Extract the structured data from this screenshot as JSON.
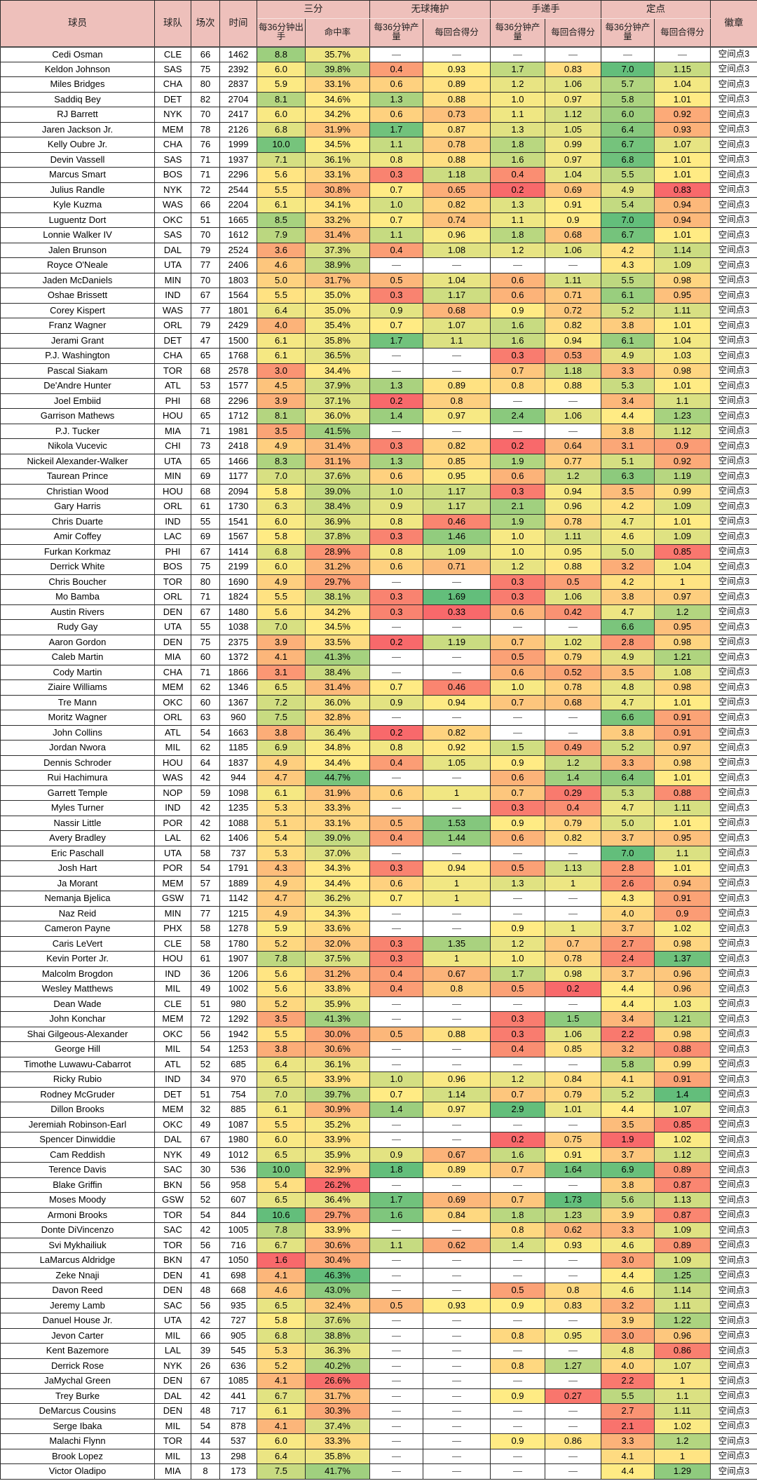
{
  "header": {
    "player": "球员",
    "team": "球队",
    "games": "场次",
    "minutes": "时间",
    "badge": "徽章",
    "groups": [
      {
        "label": "三分",
        "sub1": "每36分钟出手",
        "sub2": "命中率"
      },
      {
        "label": "无球掩护",
        "sub1": "每36分钟产量",
        "sub2": "每回合得分"
      },
      {
        "label": "手递手",
        "sub1": "每36分钟产量",
        "sub2": "每回合得分"
      },
      {
        "label": "定点",
        "sub1": "每36分钟产量",
        "sub2": "每回合得分"
      }
    ]
  },
  "heatmap": {
    "min_color": "#F8696B",
    "mid_color": "#FFEB84",
    "max_color": "#63BE7B",
    "empty_text": "—"
  },
  "rows": [
    [
      "Cedi Osman",
      "CLE",
      "66",
      "1462",
      "8.8",
      "35.7%",
      "—",
      "—",
      "—",
      "—",
      "—",
      "—",
      "空间点3"
    ],
    [
      "Keldon Johnson",
      "SAS",
      "75",
      "2392",
      "6.0",
      "39.8%",
      "0.4",
      "0.93",
      "1.7",
      "0.83",
      "7.0",
      "1.15",
      "空间点3"
    ],
    [
      "Miles Bridges",
      "CHA",
      "80",
      "2837",
      "5.9",
      "33.1%",
      "0.6",
      "0.89",
      "1.2",
      "1.06",
      "5.7",
      "1.04",
      "空间点3"
    ],
    [
      "Saddiq Bey",
      "DET",
      "82",
      "2704",
      "8.1",
      "34.6%",
      "1.3",
      "0.88",
      "1.0",
      "0.97",
      "5.8",
      "1.01",
      "空间点3"
    ],
    [
      "RJ Barrett",
      "NYK",
      "70",
      "2417",
      "6.0",
      "34.2%",
      "0.6",
      "0.73",
      "1.1",
      "1.12",
      "6.0",
      "0.92",
      "空间点3"
    ],
    [
      "Jaren Jackson Jr.",
      "MEM",
      "78",
      "2126",
      "6.8",
      "31.9%",
      "1.7",
      "0.87",
      "1.3",
      "1.05",
      "6.4",
      "0.93",
      "空间点3"
    ],
    [
      "Kelly Oubre Jr.",
      "CHA",
      "76",
      "1999",
      "10.0",
      "34.5%",
      "1.1",
      "0.78",
      "1.8",
      "0.99",
      "6.7",
      "1.07",
      "空间点3"
    ],
    [
      "Devin Vassell",
      "SAS",
      "71",
      "1937",
      "7.1",
      "36.1%",
      "0.8",
      "0.88",
      "1.6",
      "0.97",
      "6.8",
      "1.01",
      "空间点3"
    ],
    [
      "Marcus Smart",
      "BOS",
      "71",
      "2296",
      "5.6",
      "33.1%",
      "0.3",
      "1.18",
      "0.4",
      "1.04",
      "5.5",
      "1.01",
      "空间点3"
    ],
    [
      "Julius Randle",
      "NYK",
      "72",
      "2544",
      "5.5",
      "30.8%",
      "0.7",
      "0.65",
      "0.2",
      "0.69",
      "4.9",
      "0.83",
      "空间点3"
    ],
    [
      "Kyle Kuzma",
      "WAS",
      "66",
      "2204",
      "6.1",
      "34.1%",
      "1.0",
      "0.82",
      "1.3",
      "0.91",
      "5.4",
      "0.94",
      "空间点3"
    ],
    [
      "Luguentz Dort",
      "OKC",
      "51",
      "1665",
      "8.5",
      "33.2%",
      "0.7",
      "0.74",
      "1.1",
      "0.9",
      "7.0",
      "0.94",
      "空间点3"
    ],
    [
      "Lonnie Walker IV",
      "SAS",
      "70",
      "1612",
      "7.9",
      "31.4%",
      "1.1",
      "0.96",
      "1.8",
      "0.68",
      "6.7",
      "1.01",
      "空间点3"
    ],
    [
      "Jalen Brunson",
      "DAL",
      "79",
      "2524",
      "3.6",
      "37.3%",
      "0.4",
      "1.08",
      "1.2",
      "1.06",
      "4.2",
      "1.14",
      "空间点3"
    ],
    [
      "Royce O'Neale",
      "UTA",
      "77",
      "2406",
      "4.6",
      "38.9%",
      "—",
      "—",
      "—",
      "—",
      "4.3",
      "1.09",
      "空间点3"
    ],
    [
      "Jaden McDaniels",
      "MIN",
      "70",
      "1803",
      "5.0",
      "31.7%",
      "0.5",
      "1.04",
      "0.6",
      "1.11",
      "5.5",
      "0.98",
      "空间点3"
    ],
    [
      "Oshae Brissett",
      "IND",
      "67",
      "1564",
      "5.5",
      "35.0%",
      "0.3",
      "1.17",
      "0.6",
      "0.71",
      "6.1",
      "0.95",
      "空间点3"
    ],
    [
      "Corey Kispert",
      "WAS",
      "77",
      "1801",
      "6.4",
      "35.0%",
      "0.9",
      "0.68",
      "0.9",
      "0.72",
      "5.2",
      "1.11",
      "空间点3"
    ],
    [
      "Franz Wagner",
      "ORL",
      "79",
      "2429",
      "4.0",
      "35.4%",
      "0.7",
      "1.07",
      "1.6",
      "0.82",
      "3.8",
      "1.01",
      "空间点3"
    ],
    [
      "Jerami Grant",
      "DET",
      "47",
      "1500",
      "6.1",
      "35.8%",
      "1.7",
      "1.1",
      "1.6",
      "0.94",
      "6.1",
      "1.04",
      "空间点3"
    ],
    [
      "P.J. Washington",
      "CHA",
      "65",
      "1768",
      "6.1",
      "36.5%",
      "—",
      "—",
      "0.3",
      "0.53",
      "4.9",
      "1.03",
      "空间点3"
    ],
    [
      "Pascal Siakam",
      "TOR",
      "68",
      "2578",
      "3.0",
      "34.4%",
      "—",
      "—",
      "0.7",
      "1.18",
      "3.3",
      "0.98",
      "空间点3"
    ],
    [
      "De'Andre Hunter",
      "ATL",
      "53",
      "1577",
      "4.5",
      "37.9%",
      "1.3",
      "0.89",
      "0.8",
      "0.88",
      "5.3",
      "1.01",
      "空间点3"
    ],
    [
      "Joel Embiid",
      "PHI",
      "68",
      "2296",
      "3.9",
      "37.1%",
      "0.2",
      "0.8",
      "—",
      "—",
      "3.4",
      "1.1",
      "空间点3"
    ],
    [
      "Garrison Mathews",
      "HOU",
      "65",
      "1712",
      "8.1",
      "36.0%",
      "1.4",
      "0.97",
      "2.4",
      "1.06",
      "4.4",
      "1.23",
      "空间点3"
    ],
    [
      "P.J. Tucker",
      "MIA",
      "71",
      "1981",
      "3.5",
      "41.5%",
      "—",
      "—",
      "—",
      "—",
      "3.8",
      "1.12",
      "空间点3"
    ],
    [
      "Nikola Vucevic",
      "CHI",
      "73",
      "2418",
      "4.9",
      "31.4%",
      "0.3",
      "0.82",
      "0.2",
      "0.64",
      "3.1",
      "0.9",
      "空间点3"
    ],
    [
      "Nickeil Alexander-Walker",
      "UTA",
      "65",
      "1466",
      "8.3",
      "31.1%",
      "1.3",
      "0.85",
      "1.9",
      "0.77",
      "5.1",
      "0.92",
      "空间点3"
    ],
    [
      "Taurean Prince",
      "MIN",
      "69",
      "1177",
      "7.0",
      "37.6%",
      "0.6",
      "0.95",
      "0.6",
      "1.2",
      "6.3",
      "1.19",
      "空间点3"
    ],
    [
      "Christian Wood",
      "HOU",
      "68",
      "2094",
      "5.8",
      "39.0%",
      "1.0",
      "1.17",
      "0.3",
      "0.94",
      "3.5",
      "0.99",
      "空间点3"
    ],
    [
      "Gary Harris",
      "ORL",
      "61",
      "1730",
      "6.3",
      "38.4%",
      "0.9",
      "1.17",
      "2.1",
      "0.96",
      "4.2",
      "1.09",
      "空间点3"
    ],
    [
      "Chris Duarte",
      "IND",
      "55",
      "1541",
      "6.0",
      "36.9%",
      "0.8",
      "0.46",
      "1.9",
      "0.78",
      "4.7",
      "1.01",
      "空间点3"
    ],
    [
      "Amir Coffey",
      "LAC",
      "69",
      "1567",
      "5.8",
      "37.8%",
      "0.3",
      "1.46",
      "1.0",
      "1.11",
      "4.6",
      "1.09",
      "空间点3"
    ],
    [
      "Furkan Korkmaz",
      "PHI",
      "67",
      "1414",
      "6.8",
      "28.9%",
      "0.8",
      "1.09",
      "1.0",
      "0.95",
      "5.0",
      "0.85",
      "空间点3"
    ],
    [
      "Derrick White",
      "BOS",
      "75",
      "2199",
      "6.0",
      "31.2%",
      "0.6",
      "0.71",
      "1.2",
      "0.88",
      "3.2",
      "1.04",
      "空间点3"
    ],
    [
      "Chris Boucher",
      "TOR",
      "80",
      "1690",
      "4.9",
      "29.7%",
      "—",
      "—",
      "0.3",
      "0.5",
      "4.2",
      "1",
      "空间点3"
    ],
    [
      "Mo Bamba",
      "ORL",
      "71",
      "1824",
      "5.5",
      "38.1%",
      "0.3",
      "1.69",
      "0.3",
      "1.06",
      "3.8",
      "0.97",
      "空间点3"
    ],
    [
      "Austin Rivers",
      "DEN",
      "67",
      "1480",
      "5.6",
      "34.2%",
      "0.3",
      "0.33",
      "0.6",
      "0.42",
      "4.7",
      "1.2",
      "空间点3"
    ],
    [
      "Rudy Gay",
      "UTA",
      "55",
      "1038",
      "7.0",
      "34.5%",
      "—",
      "—",
      "—",
      "—",
      "6.6",
      "0.95",
      "空间点3"
    ],
    [
      "Aaron Gordon",
      "DEN",
      "75",
      "2375",
      "3.9",
      "33.5%",
      "0.2",
      "1.19",
      "0.7",
      "1.02",
      "2.8",
      "0.98",
      "空间点3"
    ],
    [
      "Caleb Martin",
      "MIA",
      "60",
      "1372",
      "4.1",
      "41.3%",
      "—",
      "—",
      "0.5",
      "0.79",
      "4.9",
      "1.21",
      "空间点3"
    ],
    [
      "Cody Martin",
      "CHA",
      "71",
      "1866",
      "3.1",
      "38.4%",
      "—",
      "—",
      "0.6",
      "0.52",
      "3.5",
      "1.08",
      "空间点3"
    ],
    [
      "Ziaire Williams",
      "MEM",
      "62",
      "1346",
      "6.5",
      "31.4%",
      "0.7",
      "0.46",
      "1.0",
      "0.78",
      "4.8",
      "0.98",
      "空间点3"
    ],
    [
      "Tre Mann",
      "OKC",
      "60",
      "1367",
      "7.2",
      "36.0%",
      "0.9",
      "0.94",
      "0.7",
      "0.68",
      "4.7",
      "1.01",
      "空间点3"
    ],
    [
      "Moritz Wagner",
      "ORL",
      "63",
      "960",
      "7.5",
      "32.8%",
      "—",
      "—",
      "—",
      "—",
      "6.6",
      "0.91",
      "空间点3"
    ],
    [
      "John Collins",
      "ATL",
      "54",
      "1663",
      "3.8",
      "36.4%",
      "0.2",
      "0.82",
      "—",
      "—",
      "3.8",
      "0.91",
      "空间点3"
    ],
    [
      "Jordan Nwora",
      "MIL",
      "62",
      "1185",
      "6.9",
      "34.8%",
      "0.8",
      "0.92",
      "1.5",
      "0.49",
      "5.2",
      "0.97",
      "空间点3"
    ],
    [
      "Dennis Schroder",
      "HOU",
      "64",
      "1837",
      "4.9",
      "34.4%",
      "0.4",
      "1.05",
      "0.9",
      "1.2",
      "3.3",
      "0.98",
      "空间点3"
    ],
    [
      "Rui Hachimura",
      "WAS",
      "42",
      "944",
      "4.7",
      "44.7%",
      "—",
      "—",
      "0.6",
      "1.4",
      "6.4",
      "1.01",
      "空间点3"
    ],
    [
      "Garrett Temple",
      "NOP",
      "59",
      "1098",
      "6.1",
      "31.9%",
      "0.6",
      "1",
      "0.7",
      "0.29",
      "5.3",
      "0.88",
      "空间点3"
    ],
    [
      "Myles Turner",
      "IND",
      "42",
      "1235",
      "5.3",
      "33.3%",
      "—",
      "—",
      "0.3",
      "0.4",
      "4.7",
      "1.11",
      "空间点3"
    ],
    [
      "Nassir Little",
      "POR",
      "42",
      "1088",
      "5.1",
      "33.1%",
      "0.5",
      "1.53",
      "0.9",
      "0.79",
      "5.0",
      "1.01",
      "空间点3"
    ],
    [
      "Avery Bradley",
      "LAL",
      "62",
      "1406",
      "5.4",
      "39.0%",
      "0.4",
      "1.44",
      "0.6",
      "0.82",
      "3.7",
      "0.95",
      "空间点3"
    ],
    [
      "Eric Paschall",
      "UTA",
      "58",
      "737",
      "5.3",
      "37.0%",
      "—",
      "—",
      "—",
      "—",
      "7.0",
      "1.1",
      "空间点3"
    ],
    [
      "Josh Hart",
      "POR",
      "54",
      "1791",
      "4.3",
      "34.3%",
      "0.3",
      "0.94",
      "0.5",
      "1.13",
      "2.8",
      "1.01",
      "空间点3"
    ],
    [
      "Ja Morant",
      "MEM",
      "57",
      "1889",
      "4.9",
      "34.4%",
      "0.6",
      "1",
      "1.3",
      "1",
      "2.6",
      "0.94",
      "空间点3"
    ],
    [
      "Nemanja Bjelica",
      "GSW",
      "71",
      "1142",
      "4.7",
      "36.2%",
      "0.7",
      "1",
      "—",
      "—",
      "4.3",
      "0.91",
      "空间点3"
    ],
    [
      "Naz Reid",
      "MIN",
      "77",
      "1215",
      "4.9",
      "34.3%",
      "—",
      "—",
      "—",
      "—",
      "4.0",
      "0.9",
      "空间点3"
    ],
    [
      "Cameron Payne",
      "PHX",
      "58",
      "1278",
      "5.9",
      "33.6%",
      "—",
      "—",
      "0.9",
      "1",
      "3.7",
      "1.02",
      "空间点3"
    ],
    [
      "Caris LeVert",
      "CLE",
      "58",
      "1780",
      "5.2",
      "32.0%",
      "0.3",
      "1.35",
      "1.2",
      "0.7",
      "2.7",
      "0.98",
      "空间点3"
    ],
    [
      "Kevin Porter Jr.",
      "HOU",
      "61",
      "1907",
      "7.8",
      "37.5%",
      "0.3",
      "1",
      "1.0",
      "0.78",
      "2.4",
      "1.37",
      "空间点3"
    ],
    [
      "Malcolm Brogdon",
      "IND",
      "36",
      "1206",
      "5.6",
      "31.2%",
      "0.4",
      "0.67",
      "1.7",
      "0.98",
      "3.7",
      "0.96",
      "空间点3"
    ],
    [
      "Wesley Matthews",
      "MIL",
      "49",
      "1002",
      "5.6",
      "33.8%",
      "0.4",
      "0.8",
      "0.5",
      "0.2",
      "4.4",
      "0.96",
      "空间点3"
    ],
    [
      "Dean Wade",
      "CLE",
      "51",
      "980",
      "5.2",
      "35.9%",
      "—",
      "—",
      "—",
      "—",
      "4.4",
      "1.03",
      "空间点3"
    ],
    [
      "John Konchar",
      "MEM",
      "72",
      "1292",
      "3.5",
      "41.3%",
      "—",
      "—",
      "0.3",
      "1.5",
      "3.4",
      "1.21",
      "空间点3"
    ],
    [
      "Shai Gilgeous-Alexander",
      "OKC",
      "56",
      "1942",
      "5.5",
      "30.0%",
      "0.5",
      "0.88",
      "0.3",
      "1.06",
      "2.2",
      "0.98",
      "空间点3"
    ],
    [
      "George Hill",
      "MIL",
      "54",
      "1253",
      "3.8",
      "30.6%",
      "—",
      "—",
      "0.4",
      "0.85",
      "3.2",
      "0.88",
      "空间点3"
    ],
    [
      "Timothe Luwawu-Cabarrot",
      "ATL",
      "52",
      "685",
      "6.4",
      "36.1%",
      "—",
      "—",
      "—",
      "—",
      "5.8",
      "0.99",
      "空间点3"
    ],
    [
      "Ricky Rubio",
      "IND",
      "34",
      "970",
      "6.5",
      "33.9%",
      "1.0",
      "0.96",
      "1.2",
      "0.84",
      "4.1",
      "0.91",
      "空间点3"
    ],
    [
      "Rodney McGruder",
      "DET",
      "51",
      "754",
      "7.0",
      "39.7%",
      "0.7",
      "1.14",
      "0.7",
      "0.79",
      "5.2",
      "1.4",
      "空间点3"
    ],
    [
      "Dillon Brooks",
      "MEM",
      "32",
      "885",
      "6.1",
      "30.9%",
      "1.4",
      "0.97",
      "2.9",
      "1.01",
      "4.4",
      "1.07",
      "空间点3"
    ],
    [
      "Jeremiah Robinson-Earl",
      "OKC",
      "49",
      "1087",
      "5.5",
      "35.2%",
      "—",
      "—",
      "—",
      "—",
      "3.5",
      "0.85",
      "空间点3"
    ],
    [
      "Spencer Dinwiddie",
      "DAL",
      "67",
      "1980",
      "6.0",
      "33.9%",
      "—",
      "—",
      "0.2",
      "0.75",
      "1.9",
      "1.02",
      "空间点3"
    ],
    [
      "Cam Reddish",
      "NYK",
      "49",
      "1012",
      "6.5",
      "35.9%",
      "0.9",
      "0.67",
      "1.6",
      "0.91",
      "3.7",
      "1.12",
      "空间点3"
    ],
    [
      "Terence Davis",
      "SAC",
      "30",
      "536",
      "10.0",
      "32.9%",
      "1.8",
      "0.89",
      "0.7",
      "1.64",
      "6.9",
      "0.89",
      "空间点3"
    ],
    [
      "Blake Griffin",
      "BKN",
      "56",
      "958",
      "5.4",
      "26.2%",
      "—",
      "—",
      "—",
      "—",
      "3.8",
      "0.87",
      "空间点3"
    ],
    [
      "Moses Moody",
      "GSW",
      "52",
      "607",
      "6.5",
      "36.4%",
      "1.7",
      "0.69",
      "0.7",
      "1.73",
      "5.6",
      "1.13",
      "空间点3"
    ],
    [
      "Armoni Brooks",
      "TOR",
      "54",
      "844",
      "10.6",
      "29.7%",
      "1.6",
      "0.84",
      "1.8",
      "1.23",
      "3.9",
      "0.87",
      "空间点3"
    ],
    [
      "Donte DiVincenzo",
      "SAC",
      "42",
      "1005",
      "7.8",
      "33.9%",
      "—",
      "—",
      "0.8",
      "0.62",
      "3.3",
      "1.09",
      "空间点3"
    ],
    [
      "Svi Mykhailiuk",
      "TOR",
      "56",
      "716",
      "6.7",
      "30.6%",
      "1.1",
      "0.62",
      "1.4",
      "0.93",
      "4.6",
      "0.89",
      "空间点3"
    ],
    [
      "LaMarcus Aldridge",
      "BKN",
      "47",
      "1050",
      "1.6",
      "30.4%",
      "—",
      "—",
      "—",
      "—",
      "3.0",
      "1.09",
      "空间点3"
    ],
    [
      "Zeke Nnaji",
      "DEN",
      "41",
      "698",
      "4.1",
      "46.3%",
      "—",
      "—",
      "—",
      "—",
      "4.4",
      "1.25",
      "空间点3"
    ],
    [
      "Davon Reed",
      "DEN",
      "48",
      "668",
      "4.6",
      "43.0%",
      "—",
      "—",
      "0.5",
      "0.8",
      "4.6",
      "1.14",
      "空间点3"
    ],
    [
      "Jeremy Lamb",
      "SAC",
      "56",
      "935",
      "6.5",
      "32.4%",
      "0.5",
      "0.93",
      "0.9",
      "0.83",
      "3.2",
      "1.11",
      "空间点3"
    ],
    [
      "Danuel House Jr.",
      "UTA",
      "42",
      "727",
      "5.8",
      "37.6%",
      "—",
      "—",
      "—",
      "—",
      "3.9",
      "1.22",
      "空间点3"
    ],
    [
      "Jevon Carter",
      "MIL",
      "66",
      "905",
      "6.8",
      "38.8%",
      "—",
      "—",
      "0.8",
      "0.95",
      "3.0",
      "0.96",
      "空间点3"
    ],
    [
      "Kent Bazemore",
      "LAL",
      "39",
      "545",
      "5.3",
      "36.3%",
      "—",
      "—",
      "—",
      "—",
      "4.8",
      "0.86",
      "空间点3"
    ],
    [
      "Derrick Rose",
      "NYK",
      "26",
      "636",
      "5.2",
      "40.2%",
      "—",
      "—",
      "0.8",
      "1.27",
      "4.0",
      "1.07",
      "空间点3"
    ],
    [
      "JaMychal Green",
      "DEN",
      "67",
      "1085",
      "4.1",
      "26.6%",
      "—",
      "—",
      "—",
      "—",
      "2.2",
      "1",
      "空间点3"
    ],
    [
      "Trey Burke",
      "DAL",
      "42",
      "441",
      "6.7",
      "31.7%",
      "—",
      "—",
      "0.9",
      "0.27",
      "5.5",
      "1.1",
      "空间点3"
    ],
    [
      "DeMarcus Cousins",
      "DEN",
      "48",
      "717",
      "6.1",
      "30.3%",
      "—",
      "—",
      "—",
      "—",
      "2.7",
      "1.11",
      "空间点3"
    ],
    [
      "Serge Ibaka",
      "MIL",
      "54",
      "878",
      "4.1",
      "37.4%",
      "—",
      "—",
      "—",
      "—",
      "2.1",
      "1.02",
      "空间点3"
    ],
    [
      "Malachi Flynn",
      "TOR",
      "44",
      "537",
      "6.0",
      "33.3%",
      "—",
      "—",
      "0.9",
      "0.86",
      "3.3",
      "1.2",
      "空间点3"
    ],
    [
      "Brook Lopez",
      "MIL",
      "13",
      "298",
      "6.4",
      "35.8%",
      "—",
      "—",
      "—",
      "—",
      "4.1",
      "1",
      "空间点3"
    ],
    [
      "Victor Oladipo",
      "MIA",
      "8",
      "173",
      "7.5",
      "41.7%",
      "—",
      "—",
      "—",
      "—",
      "4.4",
      "1.29",
      "空间点3"
    ]
  ]
}
